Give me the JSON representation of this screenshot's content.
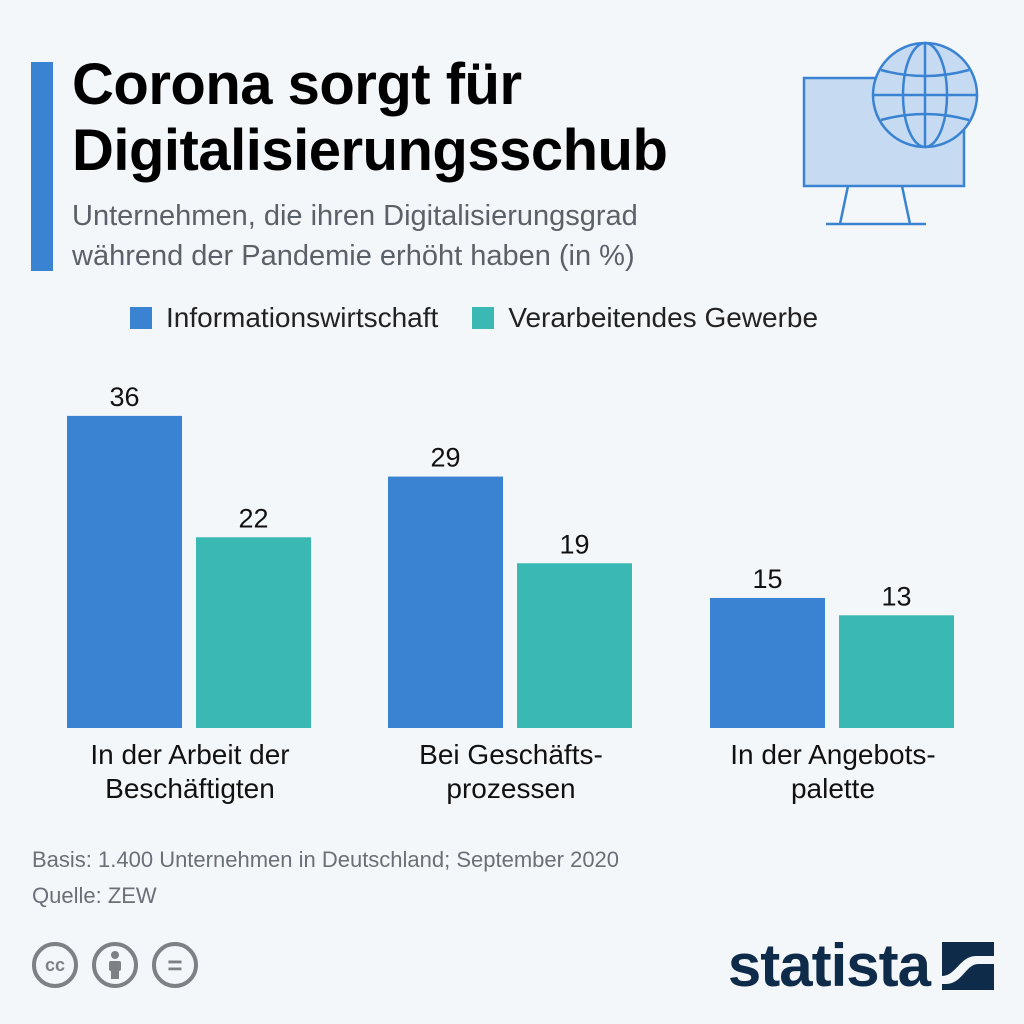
{
  "title": {
    "line1": "Corona sorgt für",
    "line2": "Digitalisierungsschub"
  },
  "subtitle": {
    "line1": "Unternehmen, die ihren Digitalisierungsgrad",
    "line2": "während der Pandemie erhöht haben (in %)"
  },
  "colors": {
    "accent": "#3a83d3",
    "series1": "#3a83d3",
    "series2": "#3ab8b3",
    "brand": "#0f2b4a"
  },
  "icons": {
    "header": "monitor-globe-icon"
  },
  "chart_data": {
    "type": "bar",
    "title": "Corona sorgt für Digitalisierungsschub",
    "xlabel": "",
    "ylabel": "",
    "ylim": [
      0,
      36
    ],
    "grid": false,
    "legend": "top",
    "categories": [
      [
        "In der Arbeit der",
        "Beschäftigten"
      ],
      [
        "Bei Geschäfts-",
        "prozessen"
      ],
      [
        "In der Angebots-",
        "palette"
      ]
    ],
    "series": [
      {
        "name": "Informationswirtschaft",
        "values": [
          36,
          29,
          15
        ]
      },
      {
        "name": "Verarbeitendes Gewerbe",
        "values": [
          22,
          19,
          13
        ]
      }
    ]
  },
  "footer": {
    "basis": "Basis: 1.400 Unternehmen in Deutschland; September 2020",
    "source": "Quelle: ZEW",
    "cc_icons": [
      "cc-icon",
      "by-icon",
      "nd-icon"
    ],
    "cc_text": "cc",
    "nd_text": "="
  },
  "brand": {
    "name": "statista"
  }
}
